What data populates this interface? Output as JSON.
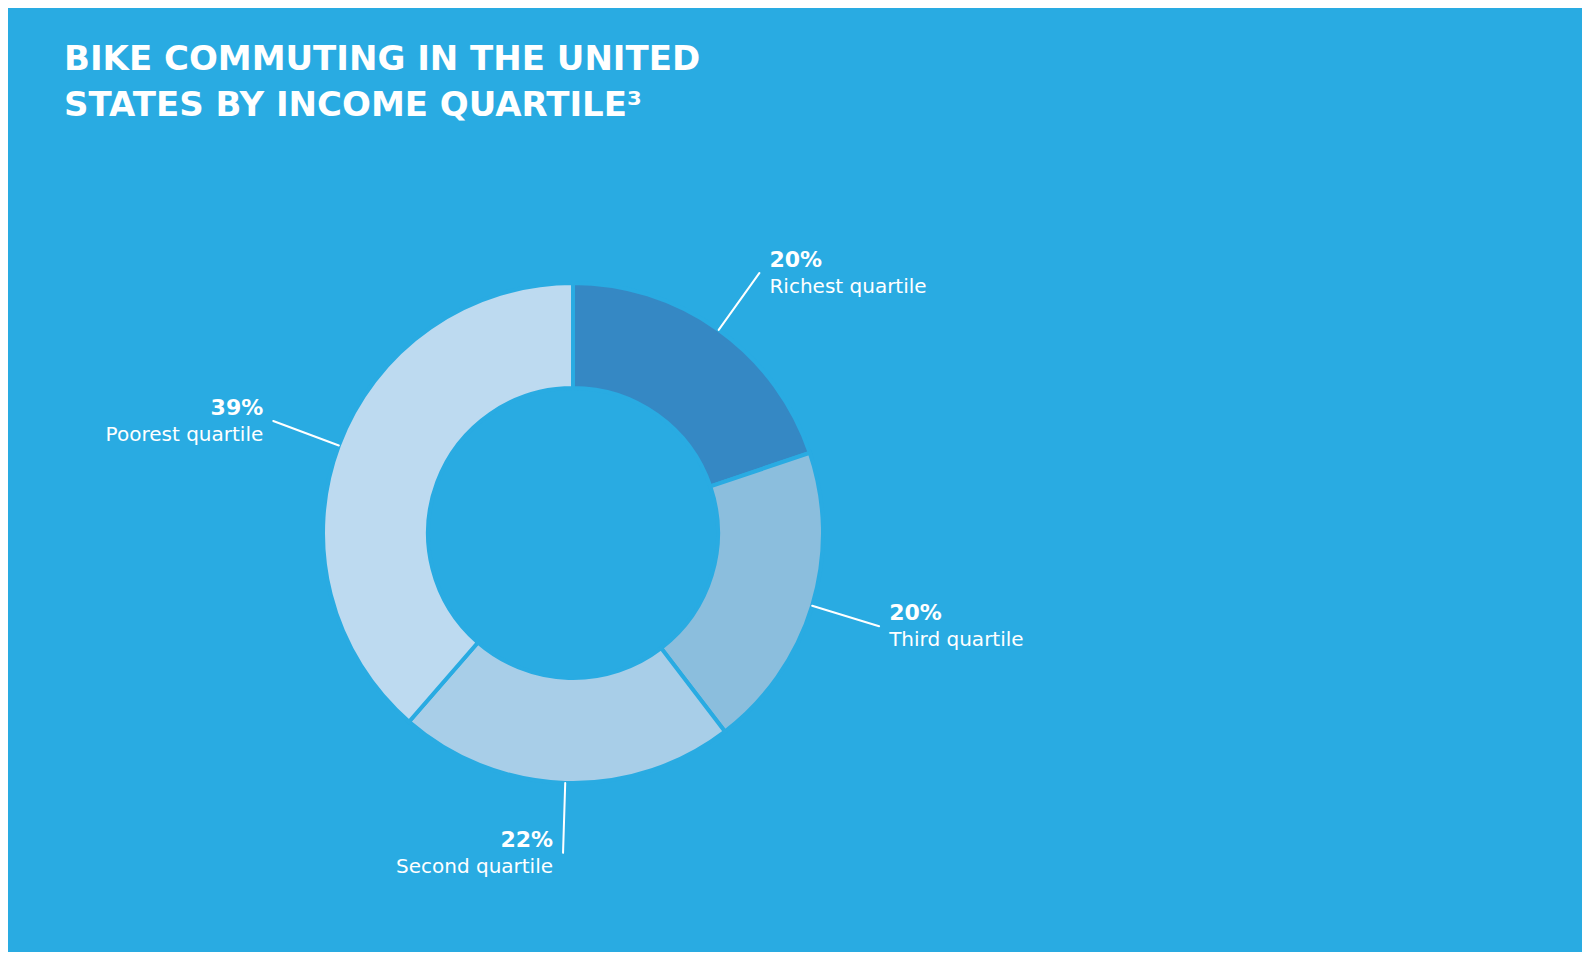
{
  "chart_data": {
    "type": "pie",
    "title": "BIKE COMMUTING IN THE UNITED STATES BY INCOME QUARTILE³",
    "categories": [
      "Richest quartile",
      "Third quartile",
      "Second quartile",
      "Poorest quartile"
    ],
    "values": [
      20,
      20,
      22,
      39
    ],
    "value_labels": [
      "20%",
      "20%",
      "22%",
      "39%"
    ],
    "colors": [
      "#3588C4",
      "#8BBEDD",
      "#A8CEE8",
      "#BDDAF0"
    ],
    "data_labels": true
  }
}
